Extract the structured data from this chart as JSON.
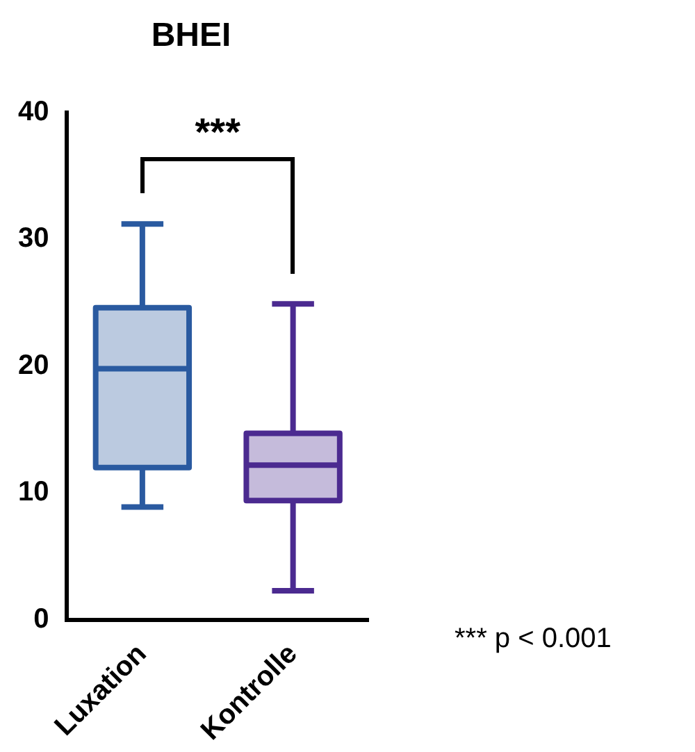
{
  "chart_data": {
    "type": "box",
    "title": "BHEI",
    "categories": [
      "Luxation",
      "Kontrolle"
    ],
    "boxes": [
      {
        "low": 8.9,
        "q1": 12.0,
        "median": 19.8,
        "q3": 24.6,
        "high": 31.2
      },
      {
        "low": 2.3,
        "q1": 9.4,
        "median": 12.2,
        "q3": 14.7,
        "high": 24.9
      }
    ],
    "colors": [
      "#2a5aa0",
      "#4b2a90"
    ],
    "ylim": [
      0,
      40
    ],
    "yticks": [
      0,
      10,
      20,
      30,
      40
    ],
    "grid": false,
    "legend": false,
    "annotations": [
      "***",
      "*** p < 0.001"
    ]
  }
}
